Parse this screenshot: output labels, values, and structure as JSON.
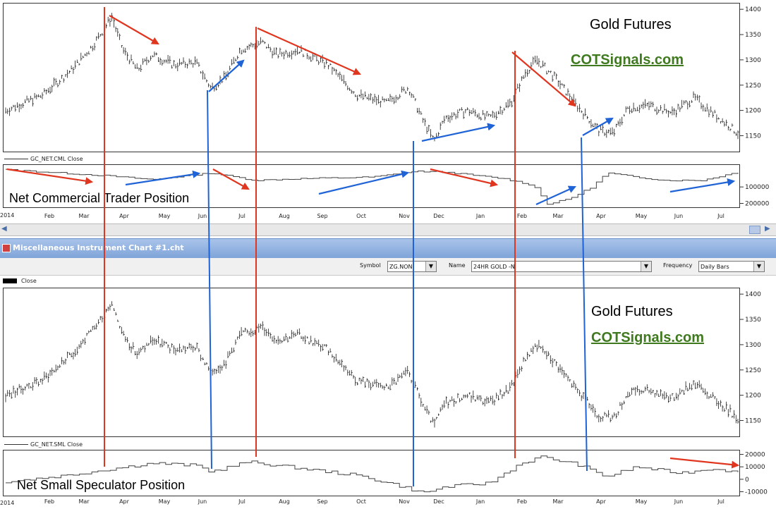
{
  "chart_data": [
    {
      "type": "line",
      "name": "Gold Futures (top price)",
      "ylim": [
        1120,
        1410
      ],
      "y_ticks": [
        "1400",
        "1350",
        "1300",
        "1250",
        "1200",
        "1150"
      ],
      "x_ticks": [
        "Feb",
        "Mar",
        "Apr",
        "May",
        "Jun",
        "Jul",
        "Aug",
        "Sep",
        "Oct",
        "Nov",
        "Dec",
        "Jan",
        "Feb",
        "Mar",
        "Apr",
        "May",
        "Jun",
        "Jul"
      ],
      "annotations": [
        "Gold Futures",
        "COTSignals.com"
      ],
      "keypoints": [
        [
          0,
          1200
        ],
        [
          0.05,
          1230
        ],
        [
          0.09,
          1280
        ],
        [
          0.12,
          1330
        ],
        [
          0.145,
          1385
        ],
        [
          0.16,
          1320
        ],
        [
          0.18,
          1280
        ],
        [
          0.2,
          1310
        ],
        [
          0.23,
          1290
        ],
        [
          0.26,
          1295
        ],
        [
          0.28,
          1245
        ],
        [
          0.3,
          1265
        ],
        [
          0.32,
          1320
        ],
        [
          0.35,
          1335
        ],
        [
          0.37,
          1310
        ],
        [
          0.4,
          1320
        ],
        [
          0.44,
          1290
        ],
        [
          0.48,
          1230
        ],
        [
          0.52,
          1215
        ],
        [
          0.55,
          1245
        ],
        [
          0.57,
          1180
        ],
        [
          0.585,
          1140
        ],
        [
          0.6,
          1185
        ],
        [
          0.63,
          1200
        ],
        [
          0.66,
          1185
        ],
        [
          0.69,
          1215
        ],
        [
          0.71,
          1275
        ],
        [
          0.725,
          1300
        ],
        [
          0.75,
          1265
        ],
        [
          0.78,
          1210
        ],
        [
          0.81,
          1160
        ],
        [
          0.83,
          1155
        ],
        [
          0.85,
          1205
        ],
        [
          0.88,
          1210
        ],
        [
          0.91,
          1195
        ],
        [
          0.94,
          1225
        ],
        [
          0.97,
          1190
        ],
        [
          1.0,
          1155
        ]
      ]
    },
    {
      "type": "line",
      "name": "GC_NET.CML Close",
      "ylim": [
        -215000,
        25000
      ],
      "y_ticks": [
        "100000",
        "200000"
      ],
      "label": "Net Commercial Trader Position"
    },
    {
      "type": "line",
      "name": "Close",
      "ylim": [
        1120,
        1410
      ],
      "y_ticks": [
        "1400",
        "1350",
        "1300",
        "1250",
        "1200",
        "1150"
      ],
      "annotations": [
        "Gold Futures",
        "COTSignals.com"
      ]
    },
    {
      "type": "line",
      "name": "GC_NET.SML Close",
      "ylim": [
        -12000,
        22000
      ],
      "y_ticks": [
        "20000",
        "10000",
        "0",
        "-10000"
      ],
      "label": "Net Small Speculator Position"
    }
  ],
  "labels": {
    "cml_series": "GC_NET.CML Close",
    "cml_text": "Net Commercial Trader Position",
    "close_series": "Close",
    "sml_series": "GC_NET.SML Close",
    "sml_text": "Net Small Speculator Position",
    "gold1": "Gold Futures",
    "site1": "COTSignals.com",
    "gold2": "Gold Futures",
    "site2": "COTSignals.com",
    "year_a": "2014",
    "year_b": "2014"
  },
  "window": {
    "title": "Miscellaneous Instrument Chart #1.cht",
    "symbol_label": "Symbol",
    "symbol_value": "ZG.NON",
    "name_label": "Name",
    "name_value": "24HR GOLD -N",
    "freq_label": "Frequency",
    "freq_value": "Daily Bars"
  },
  "months": [
    "Feb",
    "Mar",
    "Apr",
    "May",
    "Jun",
    "Jul",
    "Aug",
    "Sep",
    "Oct",
    "Nov",
    "Dec",
    "Jan",
    "Feb",
    "Mar",
    "Apr",
    "May",
    "Jun",
    "Jul"
  ],
  "colors": {
    "red": "#e0361f",
    "blue": "#1f63d6",
    "link": "#3f7a1e"
  }
}
